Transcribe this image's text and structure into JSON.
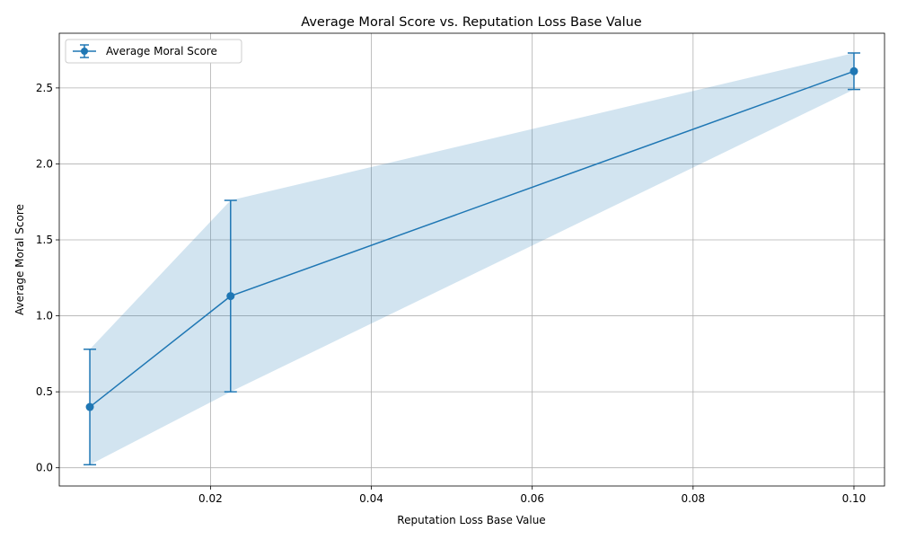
{
  "chart_data": {
    "type": "line",
    "title": "Average Moral Score vs. Reputation Loss Base Value",
    "xlabel": "Reputation Loss Base Value",
    "ylabel": "Average Moral Score",
    "xlim": [
      0.0012,
      0.1038
    ],
    "ylim": [
      -0.12,
      2.86
    ],
    "x_ticks": [
      0.02,
      0.04,
      0.06,
      0.08,
      0.1
    ],
    "x_tick_labels": [
      "0.02",
      "0.04",
      "0.06",
      "0.08",
      "0.10"
    ],
    "y_ticks": [
      0.0,
      0.5,
      1.0,
      1.5,
      2.0,
      2.5
    ],
    "y_tick_labels": [
      "0.0",
      "0.5",
      "1.0",
      "1.5",
      "2.0",
      "2.5"
    ],
    "grid": true,
    "legend_position": "top-left",
    "series": [
      {
        "name": "Average Moral Score",
        "color": "#1f77b4",
        "x": [
          0.005,
          0.0225,
          0.1
        ],
        "y": [
          0.4,
          1.13,
          2.61
        ],
        "error": [
          0.38,
          0.63,
          0.12
        ]
      }
    ]
  }
}
